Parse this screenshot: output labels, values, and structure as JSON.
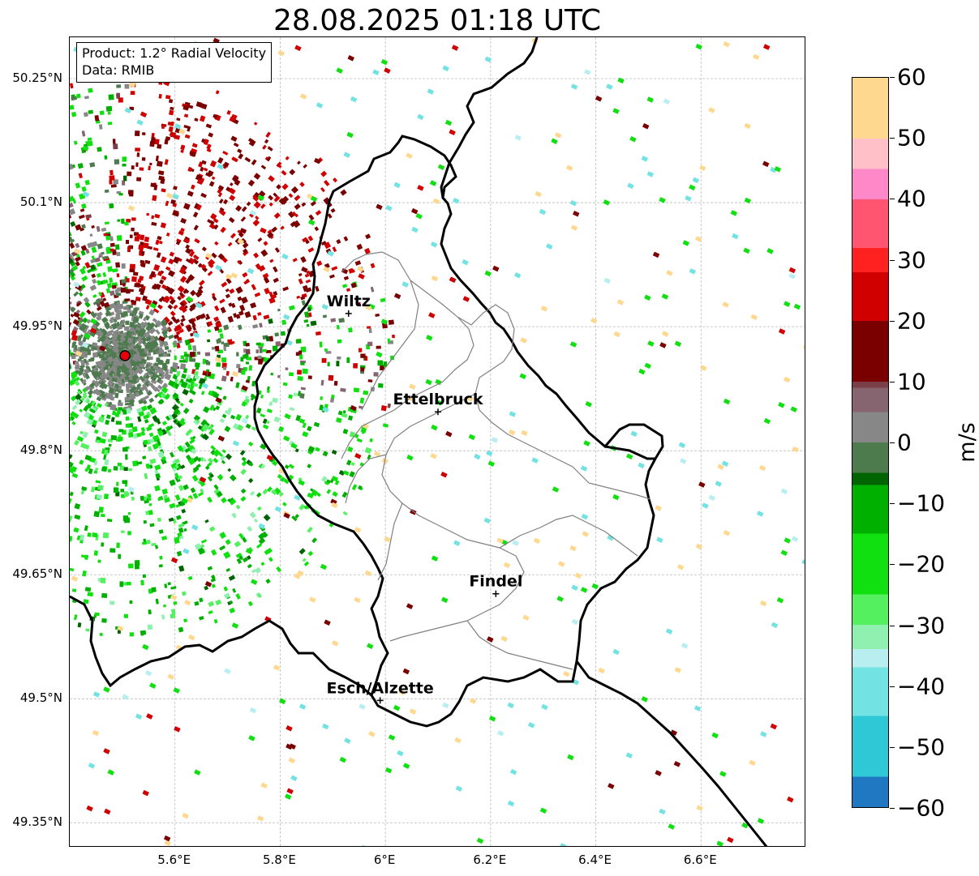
{
  "title": "28.08.2025 01:18 UTC",
  "info": {
    "product": "Product: 1.2° Radial Velocity",
    "data_source": "Data: RMIB"
  },
  "map": {
    "lon_range": [
      5.4,
      6.8
    ],
    "lat_range": [
      49.32,
      50.3
    ],
    "lat_ticks": [
      "50.25°N",
      "50.1°N",
      "49.95°N",
      "49.8°N",
      "49.65°N",
      "49.5°N",
      "49.35°N"
    ],
    "lat_values": [
      50.25,
      50.1,
      49.95,
      49.8,
      49.65,
      49.5,
      49.35
    ],
    "lon_ticks": [
      "5.6°E",
      "5.8°E",
      "6°E",
      "6.2°E",
      "6.4°E",
      "6.6°E"
    ],
    "lon_values": [
      5.6,
      5.8,
      6.0,
      6.2,
      6.4,
      6.6
    ],
    "radar_site": {
      "lon": 5.505,
      "lat": 49.915,
      "color": "#e8000b"
    },
    "cities": [
      {
        "name": "Wiltz",
        "lon": 5.93,
        "lat": 49.966
      },
      {
        "name": "Ettelbruck",
        "lon": 6.1,
        "lat": 49.847
      },
      {
        "name": "Findel",
        "lon": 6.21,
        "lat": 49.627
      },
      {
        "name": "Esch/Alzette",
        "lon": 5.99,
        "lat": 49.498
      }
    ],
    "gridlines": true
  },
  "colorbar": {
    "unit": "m/s",
    "min": -60,
    "max": 60,
    "tick_values": [
      60,
      50,
      40,
      30,
      20,
      10,
      0,
      -10,
      -20,
      -30,
      -40,
      -50,
      -60
    ],
    "tick_labels": [
      "60",
      "50",
      "40",
      "30",
      "20",
      "10",
      "0",
      "−10",
      "−20",
      "−30",
      "−40",
      "−50",
      "−60"
    ],
    "colors": {
      "-60": "#1f78c1",
      "-55": "#2ec8d6",
      "-45": "#72e2e2",
      "-37": "#b8eef0",
      "-34": "#90f0b0",
      "-30": "#55f060",
      "-25": "#10e010",
      "-15": "#00b000",
      "-7": "#006400",
      "-5": "#4e7b4e",
      "0": "#878787",
      "5": "#866470",
      "9": "#7a3f48",
      "10": "#7a0000",
      "20": "#d00000",
      "28": "#ff2020",
      "32": "#ff5570",
      "40": "#ff88c8",
      "45": "#ffc0c8",
      "50": "#ffd890",
      "60": "#ff9a50"
    }
  }
}
